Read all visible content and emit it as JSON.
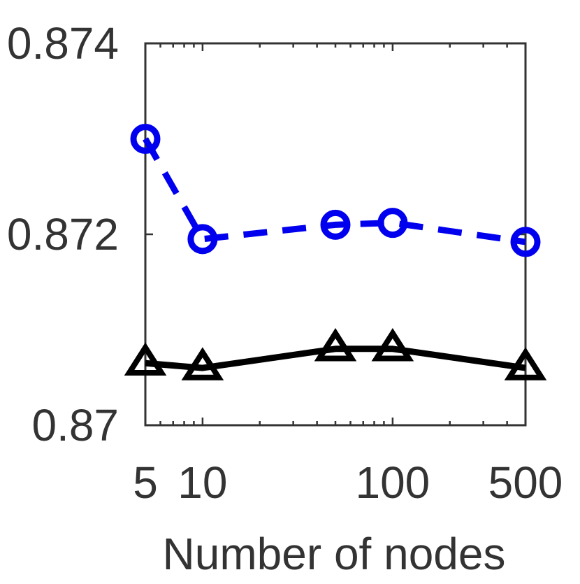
{
  "chart_data": {
    "type": "line",
    "title": "",
    "xlabel": "Number of nodes",
    "ylabel": "",
    "xscale": "log",
    "xlim": [
      5,
      500
    ],
    "ylim": [
      0.87,
      0.874
    ],
    "xticks": [
      5,
      10,
      100,
      500
    ],
    "xtick_labels": [
      "5",
      "10",
      "100",
      "500"
    ],
    "yticks": [
      0.87,
      0.872,
      0.874
    ],
    "ytick_labels": [
      "0.87",
      "0.872",
      "0.874"
    ],
    "grid": false,
    "legend": "none",
    "series": [
      {
        "color": "#0000ee",
        "line_style": "dashed",
        "marker": "circle",
        "x": [
          5,
          10,
          50,
          100,
          500
        ],
        "y": [
          0.873,
          0.87195,
          0.8721,
          0.87212,
          0.87192
        ]
      },
      {
        "color": "#000000",
        "line_style": "solid",
        "marker": "triangle",
        "x": [
          5,
          10,
          50,
          100,
          500
        ],
        "y": [
          0.87065,
          0.8706,
          0.8708,
          0.8708,
          0.8706
        ]
      }
    ]
  }
}
